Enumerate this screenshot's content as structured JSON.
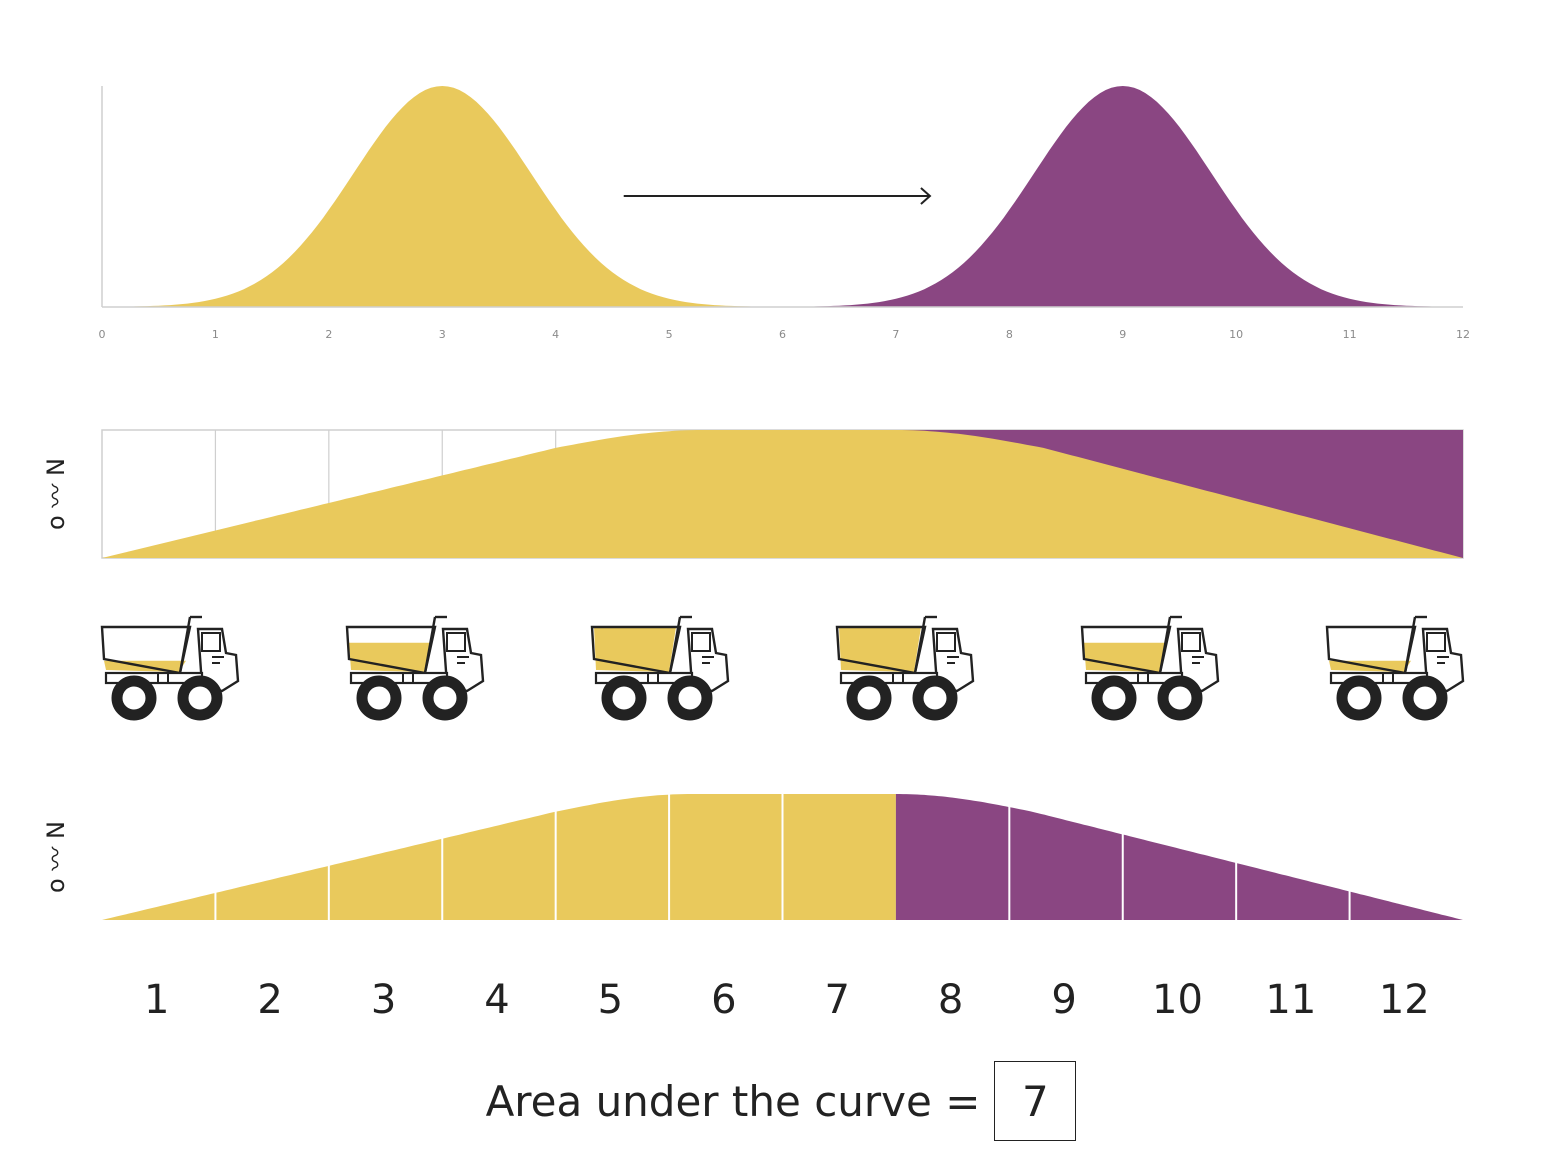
{
  "colors": {
    "yellow": "#E9C95C",
    "purple": "#8A4682",
    "ink": "#222222",
    "grid": "#cfcfcf",
    "tick": "#8a8a8a"
  },
  "top_chart": {
    "ticks": [
      "0",
      "1",
      "2",
      "3",
      "4",
      "5",
      "6",
      "7",
      "8",
      "9",
      "10",
      "11",
      "12"
    ],
    "yellow_peak": 3,
    "purple_peak": 9,
    "arrow": {
      "from": 4.6,
      "to": 7.3
    }
  },
  "middle_chart": {
    "axis_side_label": "o 〰 N"
  },
  "trucks": {
    "count": 6,
    "fill_levels": [
      0.25,
      0.65,
      1.0,
      1.0,
      0.65,
      0.25
    ]
  },
  "bottom_chart": {
    "bins": [
      "1",
      "2",
      "3",
      "4",
      "5",
      "6",
      "7",
      "8",
      "9",
      "10",
      "11",
      "12"
    ],
    "yellow_bins": 7,
    "axis_side_label": "o 〰 N"
  },
  "caption": {
    "text": "Area under the curve =",
    "value": "7"
  }
}
